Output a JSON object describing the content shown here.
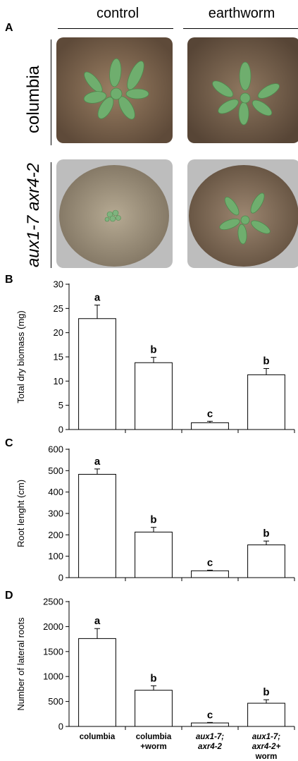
{
  "figure": {
    "column_headers": [
      "control",
      "earthworm"
    ],
    "panel_letters": [
      "A",
      "B",
      "C",
      "D"
    ],
    "row_labels": [
      {
        "text": "columbia",
        "italic": false
      },
      {
        "text": "aux1-7 axr4-2",
        "italic": true
      }
    ],
    "photos": [
      {
        "id": "columbia-control",
        "soil": "#8a7158",
        "plant": "large"
      },
      {
        "id": "columbia-earthworm",
        "soil": "#7f6a55",
        "plant": "large"
      },
      {
        "id": "aux-control",
        "soil": "#a29780",
        "plant": "tiny"
      },
      {
        "id": "aux-earthworm",
        "soil": "#8a7760",
        "plant": "medium"
      }
    ],
    "colors": {
      "bar_fill": "#ffffff",
      "bar_stroke": "#000000",
      "plant": "#6aa86a",
      "pot_rim": "#c9c9c9"
    }
  },
  "chart_data": [
    {
      "type": "bar",
      "panel": "B",
      "categories": [
        "columbia",
        "columbia +worm",
        "aux1-7; axr4-2",
        "aux1-7; axr4-2+ worm"
      ],
      "values": [
        22.9,
        13.8,
        1.4,
        11.3
      ],
      "errors": [
        2.8,
        1.1,
        0.3,
        1.3
      ],
      "letters": [
        "a",
        "b",
        "c",
        "b"
      ],
      "ylabel": "Total dry biomass (mg)",
      "ylim": [
        0,
        30
      ],
      "yticks": [
        "0",
        "5",
        "10",
        "15",
        "20",
        "25",
        "30"
      ]
    },
    {
      "type": "bar",
      "panel": "C",
      "categories": [
        "columbia",
        "columbia +worm",
        "aux1-7; axr4-2",
        "aux1-7; axr4-2+ worm"
      ],
      "values": [
        483,
        213,
        32,
        153
      ],
      "errors": [
        25,
        22,
        3,
        18
      ],
      "letters": [
        "a",
        "b",
        "c",
        "b"
      ],
      "ylabel": "Root lenght (cm)",
      "ylim": [
        0,
        600
      ],
      "yticks": [
        "0",
        "100",
        "200",
        "300",
        "400",
        "500",
        "600"
      ]
    },
    {
      "type": "bar",
      "panel": "D",
      "categories": [
        "columbia",
        "columbia +worm",
        "aux1-7; axr4-2",
        "aux1-7; axr4-2+ worm"
      ],
      "category_lines": [
        [
          "columbia"
        ],
        [
          "columbia",
          "+worm"
        ],
        [
          "aux1-7;",
          "axr4-2"
        ],
        [
          "aux1-7;",
          "axr4-2+",
          "worm"
        ]
      ],
      "category_italic": [
        false,
        false,
        true,
        true
      ],
      "values": [
        1760,
        725,
        70,
        465
      ],
      "errors": [
        200,
        90,
        10,
        70
      ],
      "letters": [
        "a",
        "b",
        "c",
        "b"
      ],
      "ylabel": "Number of lateral roots",
      "ylim": [
        0,
        2500
      ],
      "yticks": [
        "0",
        "500",
        "1000",
        "1500",
        "2000",
        "2500"
      ]
    }
  ]
}
